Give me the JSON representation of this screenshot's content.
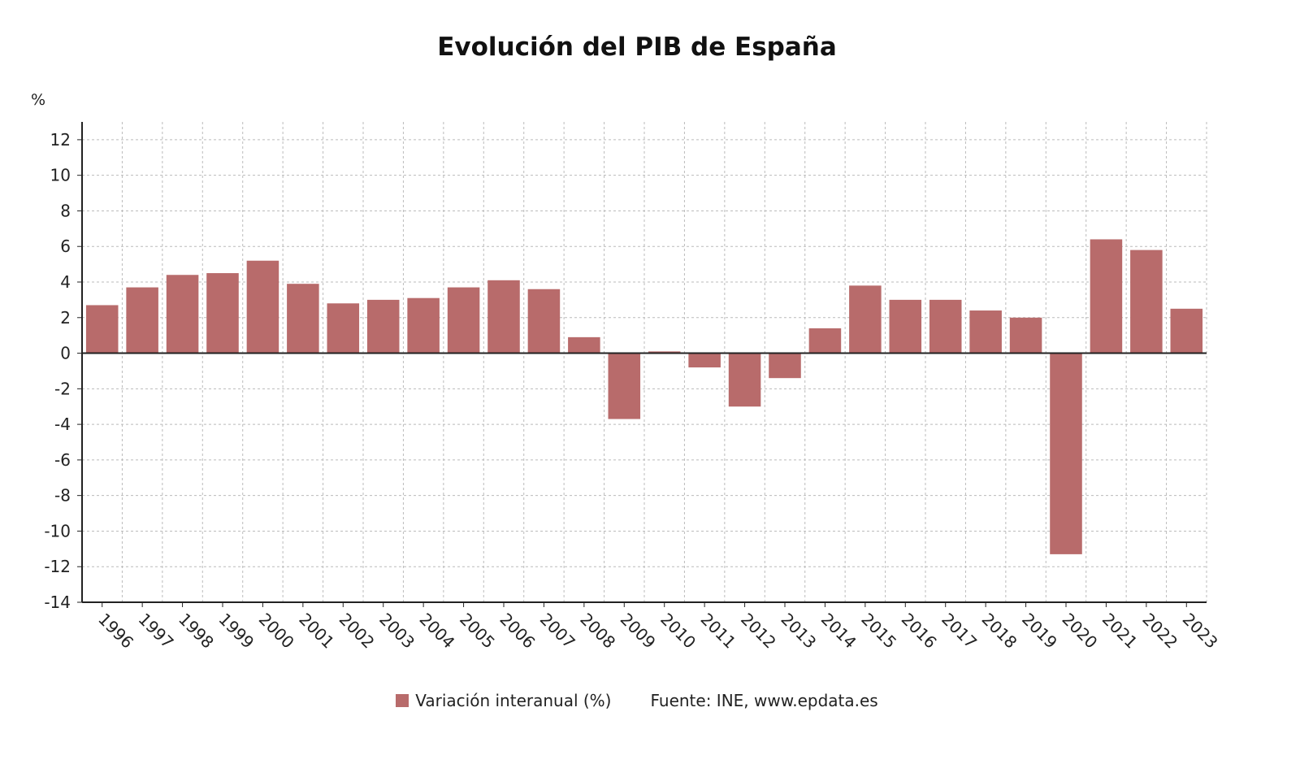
{
  "chart_data": {
    "type": "bar",
    "title": "Evolución del PIB de España",
    "ylabel": "%",
    "xlabel": "",
    "ylim": [
      -14,
      13
    ],
    "yticks": [
      12,
      10,
      8,
      6,
      4,
      2,
      0,
      -2,
      -4,
      -6,
      -8,
      -10,
      -12,
      -14
    ],
    "grid": true,
    "legend_position": "bottom",
    "categories": [
      "1996",
      "1997",
      "1998",
      "1999",
      "2000",
      "2001",
      "2002",
      "2003",
      "2004",
      "2005",
      "2006",
      "2007",
      "2008",
      "2009",
      "2010",
      "2011",
      "2012",
      "2013",
      "2014",
      "2015",
      "2016",
      "2017",
      "2018",
      "2019",
      "2020",
      "2021",
      "2022",
      "2023"
    ],
    "series": [
      {
        "name": "Variación interanual (%)",
        "color": "#b86b6b",
        "values": [
          2.7,
          3.7,
          4.4,
          4.5,
          5.2,
          3.9,
          2.8,
          3.0,
          3.1,
          3.7,
          4.1,
          3.6,
          0.9,
          -3.7,
          0.1,
          -0.8,
          -3.0,
          -1.4,
          1.4,
          3.8,
          3.0,
          3.0,
          2.4,
          2.0,
          -11.3,
          6.4,
          5.8,
          2.5
        ]
      }
    ],
    "source": "Fuente: INE, www.epdata.es"
  }
}
